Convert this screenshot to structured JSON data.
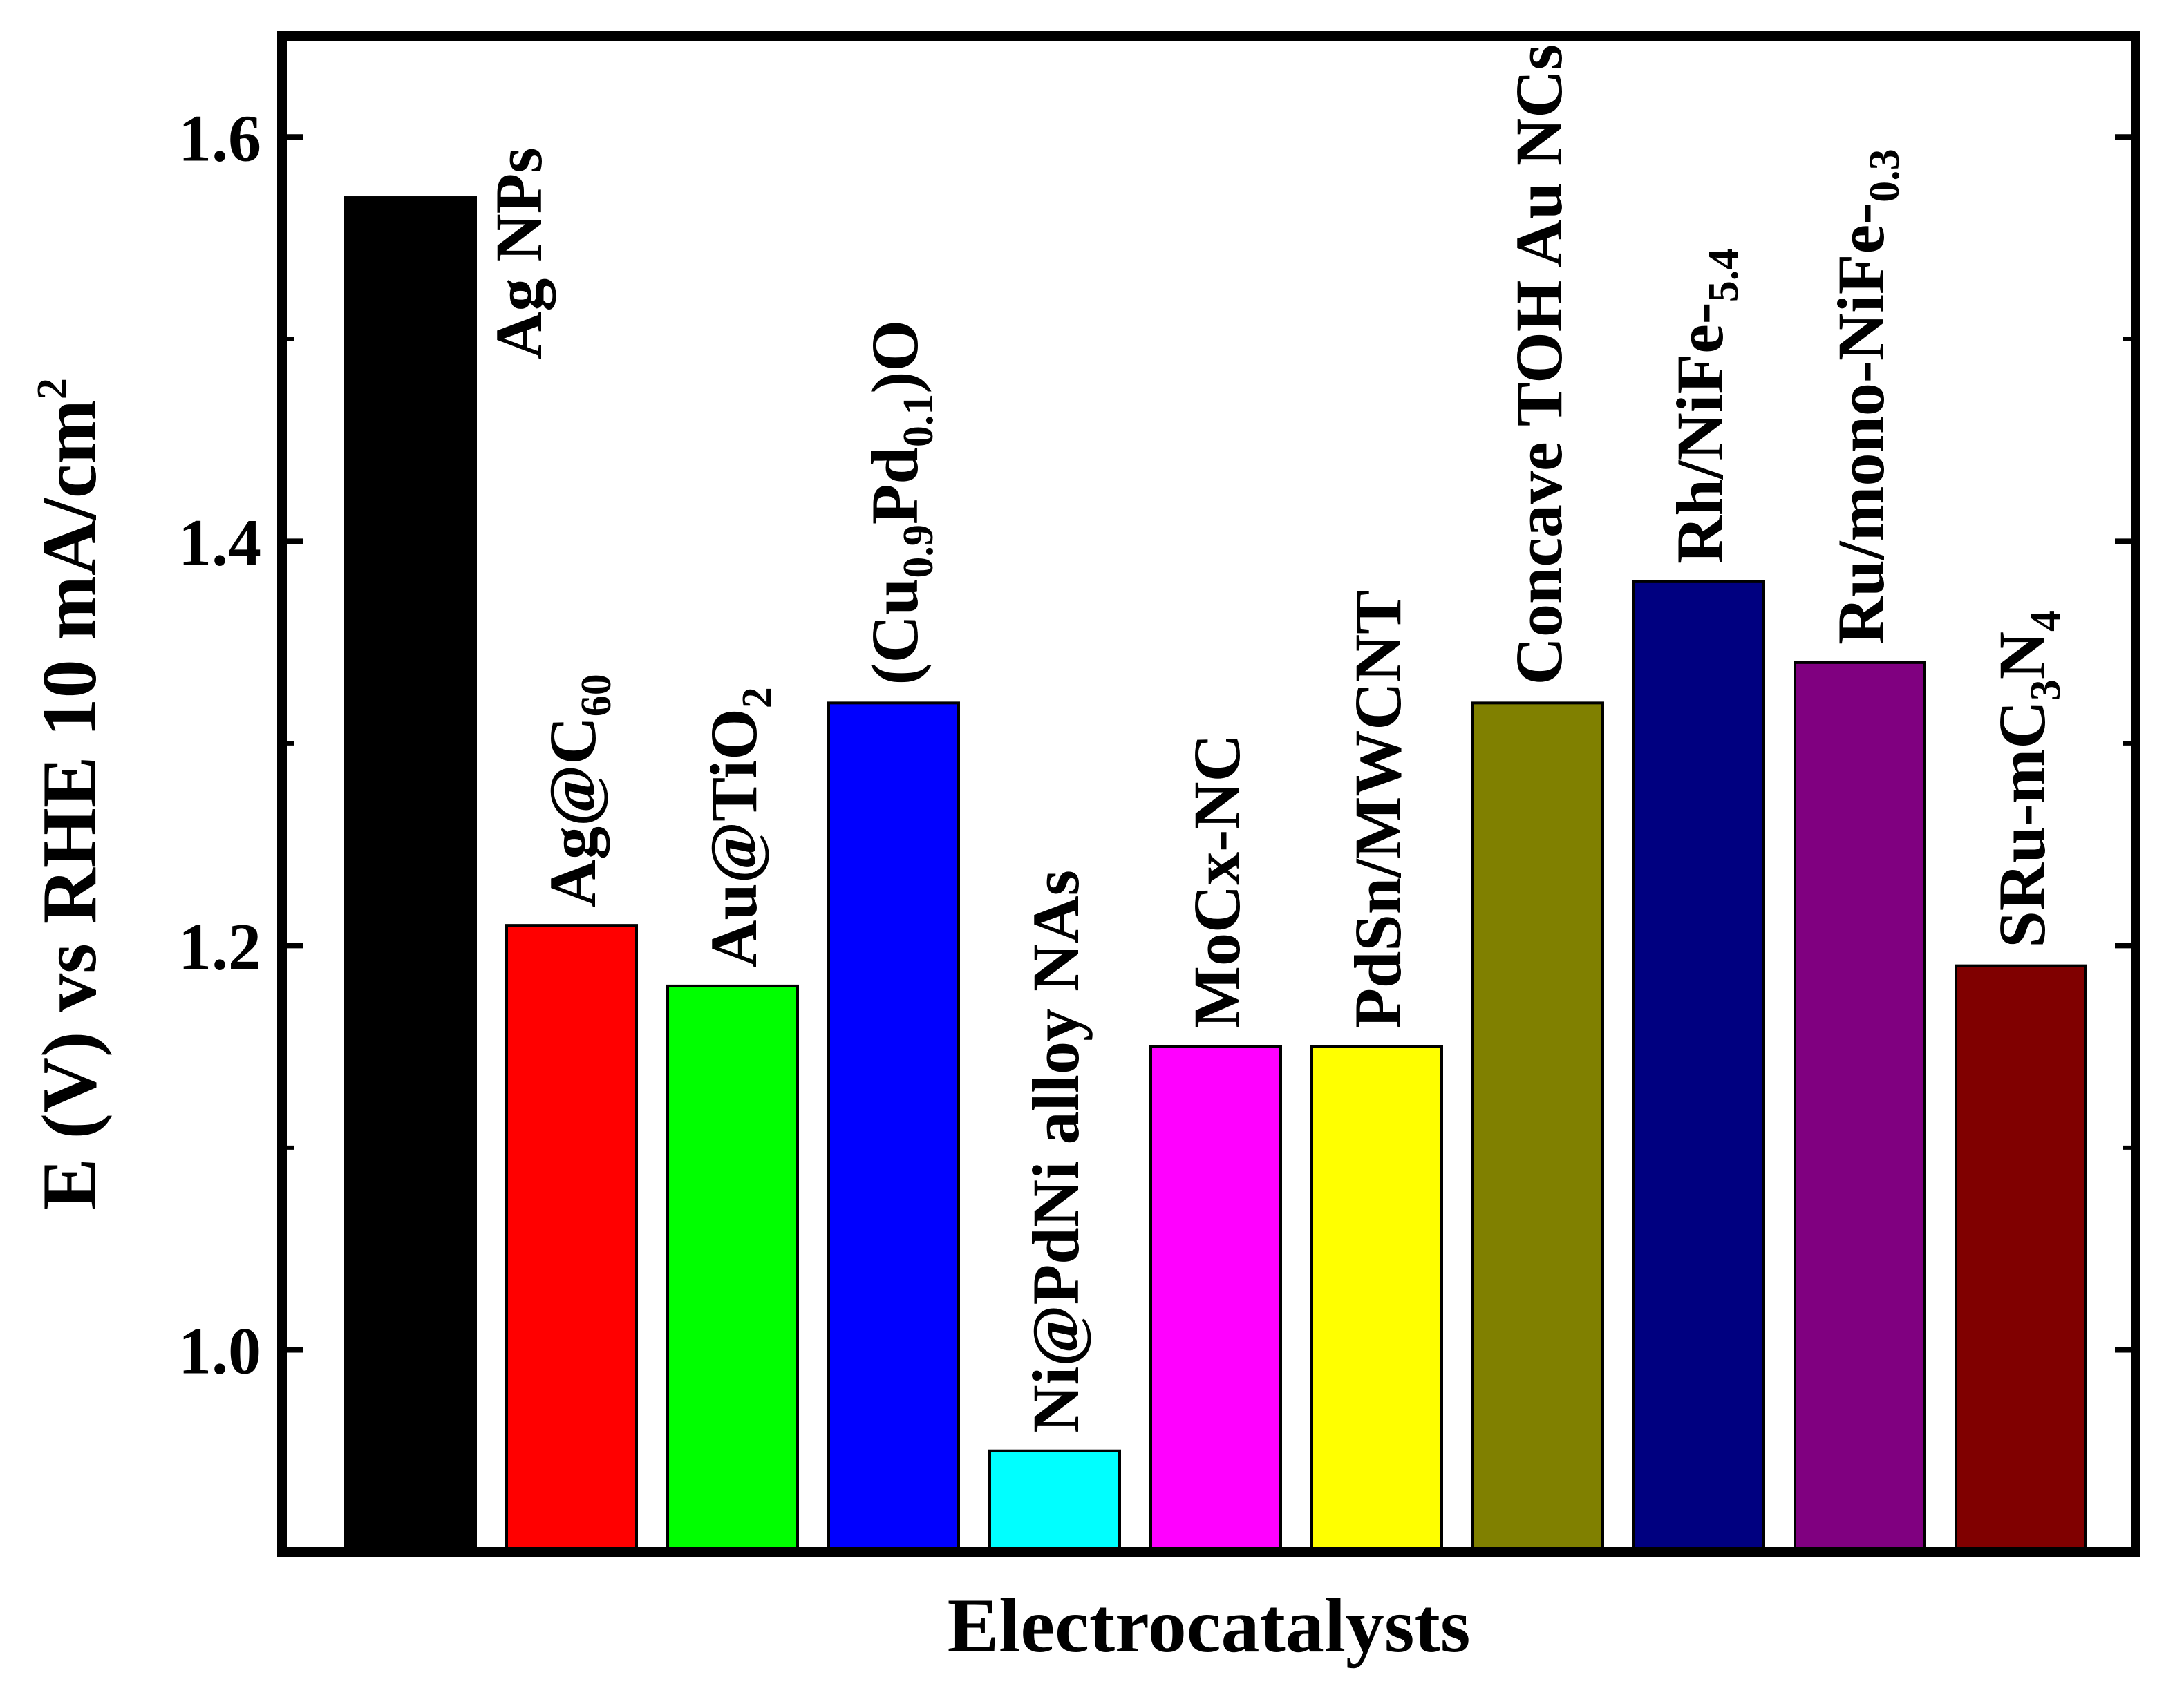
{
  "chart_data": {
    "type": "bar",
    "title": "",
    "xlabel": "Electrocatalysts",
    "ylabel": "E (V) vs RHE 10 mA/cm",
    "ylabel_sup": "2",
    "ylim": [
      0.9,
      1.65
    ],
    "yticks": [
      1.0,
      1.2,
      1.4,
      1.6
    ],
    "ytick_labels": [
      "1.0",
      "1.2",
      "1.4",
      "1.6"
    ],
    "minor_ticks": [
      1.1,
      1.3,
      1.5
    ],
    "grid": false,
    "categories": [
      {
        "label": [
          {
            "t": "Ag NPs"
          }
        ],
        "value": 1.57,
        "color": "#000000"
      },
      {
        "label": [
          {
            "t": "Ag@C"
          },
          {
            "t": "60",
            "s": "sub"
          }
        ],
        "value": 1.21,
        "color": "#ff0000"
      },
      {
        "label": [
          {
            "t": "Au@TiO"
          },
          {
            "t": "2",
            "s": "sub"
          }
        ],
        "value": 1.18,
        "color": "#00ff00"
      },
      {
        "label": [
          {
            "t": "(Cu"
          },
          {
            "t": "0.9",
            "s": "sub"
          },
          {
            "t": "Pd"
          },
          {
            "t": "0.1",
            "s": "sub"
          },
          {
            "t": ")O"
          }
        ],
        "value": 1.32,
        "color": "#0000ff"
      },
      {
        "label": [
          {
            "t": "Ni@PdNi alloy NAs"
          }
        ],
        "value": 0.95,
        "color": "#00ffff"
      },
      {
        "label": [
          {
            "t": "MoCx-NC"
          }
        ],
        "value": 1.15,
        "color": "#ff00ff"
      },
      {
        "label": [
          {
            "t": "PdSn/MWCNT"
          }
        ],
        "value": 1.15,
        "color": "#ffff00"
      },
      {
        "label": [
          {
            "t": "Concave TOH Au NCs"
          }
        ],
        "value": 1.32,
        "color": "#808000"
      },
      {
        "label": [
          {
            "t": "Rh/NiFe-"
          },
          {
            "t": "5.4",
            "s": "sub"
          }
        ],
        "value": 1.38,
        "color": "#000080"
      },
      {
        "label": [
          {
            "t": "Ru/mono-NiFe-"
          },
          {
            "t": "0.3",
            "s": "sub"
          }
        ],
        "value": 1.34,
        "color": "#800080"
      },
      {
        "label": [
          {
            "t": "SRu-mC"
          },
          {
            "t": "3",
            "s": "sub"
          },
          {
            "t": "N"
          },
          {
            "t": "4",
            "s": "sub"
          }
        ],
        "value": 1.19,
        "color": "#800000"
      }
    ]
  }
}
